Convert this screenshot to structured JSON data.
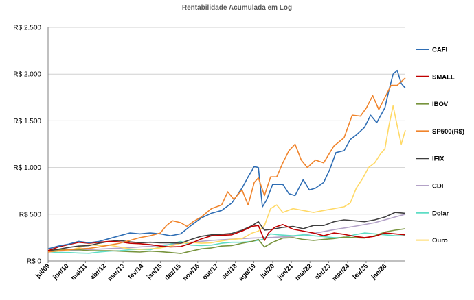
{
  "chart_data": {
    "type": "line",
    "title": "Rentabilidade Acumulada em Log",
    "xlabel": "",
    "ylabel": "",
    "ylim": [
      0,
      2500
    ],
    "yticks": [
      0,
      500,
      1000,
      1500,
      2000,
      2500
    ],
    "ytick_labels": [
      "R$ 0",
      "R$ 500",
      "R$ 1.000",
      "R$ 1.500",
      "R$ 2.000",
      "R$ 2.500"
    ],
    "x_range": [
      2009.5,
      2027.0
    ],
    "xticks": [
      2009.5,
      2010.42,
      2011.33,
      2012.25,
      2013.17,
      2014.08,
      2015.0,
      2015.92,
      2016.83,
      2017.75,
      2018.67,
      2019.58,
      2020.5,
      2021.42,
      2022.33,
      2023.25,
      2024.17,
      2025.08,
      2026.0
    ],
    "xtick_labels": [
      "jul/09",
      "jun/10",
      "mai/11",
      "abr/12",
      "mar/13",
      "fev/14",
      "jan/15",
      "dez/15",
      "nov/16",
      "out/17",
      "set/18",
      "ago/19",
      "jul/20",
      "jun/21",
      "mai/22",
      "abr/23",
      "mar/24",
      "fev/25",
      "jan/26"
    ],
    "grid": true,
    "legend_position": "right",
    "series": [
      {
        "name": "CAFI",
        "color": "#2E6DB4",
        "x": [
          2009.5,
          2010.0,
          2010.5,
          2011.0,
          2011.5,
          2012.0,
          2012.5,
          2013.0,
          2013.5,
          2014.0,
          2014.5,
          2015.0,
          2015.5,
          2016.0,
          2016.5,
          2017.0,
          2017.5,
          2018.0,
          2018.5,
          2019.0,
          2019.3,
          2019.6,
          2019.8,
          2020.0,
          2020.2,
          2020.5,
          2021.0,
          2021.3,
          2021.6,
          2022.0,
          2022.3,
          2022.6,
          2023.0,
          2023.3,
          2023.6,
          2024.0,
          2024.3,
          2024.6,
          2025.0,
          2025.3,
          2025.6,
          2026.0,
          2026.2,
          2026.4,
          2026.6,
          2026.8,
          2027.0
        ],
        "values": [
          130,
          160,
          180,
          210,
          195,
          210,
          240,
          270,
          300,
          290,
          300,
          290,
          270,
          290,
          380,
          460,
          510,
          540,
          620,
          780,
          900,
          1010,
          1000,
          580,
          650,
          820,
          820,
          720,
          700,
          870,
          760,
          780,
          840,
          980,
          1160,
          1180,
          1300,
          1350,
          1430,
          1560,
          1480,
          1640,
          1830,
          2000,
          2040,
          1900,
          1850
        ]
      },
      {
        "name": "SMALL",
        "color": "#C00000",
        "x": [
          2009.5,
          2010.0,
          2010.5,
          2011.0,
          2011.5,
          2012.0,
          2012.5,
          2013.0,
          2013.5,
          2014.0,
          2014.5,
          2015.0,
          2015.5,
          2016.0,
          2016.5,
          2017.0,
          2017.5,
          2018.0,
          2018.5,
          2019.0,
          2019.5,
          2019.8,
          2020.1,
          2020.3,
          2020.6,
          2021.0,
          2021.5,
          2022.0,
          2022.5,
          2023.0,
          2023.5,
          2024.0,
          2024.5,
          2025.0,
          2025.5,
          2026.0,
          2026.5,
          2027.0
        ],
        "values": [
          110,
          150,
          175,
          200,
          190,
          200,
          210,
          205,
          190,
          185,
          175,
          160,
          150,
          155,
          190,
          235,
          270,
          275,
          280,
          320,
          370,
          380,
          220,
          300,
          360,
          390,
          340,
          320,
          300,
          270,
          300,
          285,
          265,
          250,
          265,
          300,
          290,
          280
        ]
      },
      {
        "name": "IBOV",
        "color": "#77933C",
        "x": [
          2009.5,
          2010.0,
          2010.5,
          2011.0,
          2011.5,
          2012.0,
          2012.5,
          2013.0,
          2013.5,
          2014.0,
          2014.5,
          2015.0,
          2015.5,
          2016.0,
          2016.5,
          2017.0,
          2017.5,
          2018.0,
          2018.5,
          2019.0,
          2019.5,
          2019.8,
          2020.1,
          2020.5,
          2021.0,
          2021.5,
          2022.0,
          2022.5,
          2023.0,
          2023.5,
          2024.0,
          2024.5,
          2025.0,
          2025.5,
          2026.0,
          2026.5,
          2027.0
        ],
        "values": [
          110,
          120,
          120,
          120,
          110,
          110,
          110,
          105,
          100,
          95,
          105,
          100,
          90,
          80,
          105,
          130,
          140,
          160,
          165,
          190,
          210,
          230,
          150,
          200,
          245,
          250,
          230,
          220,
          230,
          240,
          255,
          250,
          245,
          270,
          310,
          330,
          345
        ]
      },
      {
        "name": "SP500(R$)",
        "color": "#F0842C",
        "x": [
          2009.5,
          2010.0,
          2010.5,
          2011.0,
          2011.5,
          2012.0,
          2012.5,
          2013.0,
          2013.5,
          2014.0,
          2014.5,
          2015.0,
          2015.3,
          2015.6,
          2016.0,
          2016.3,
          2016.6,
          2017.0,
          2017.5,
          2018.0,
          2018.3,
          2018.6,
          2019.0,
          2019.3,
          2019.6,
          2019.8,
          2020.1,
          2020.4,
          2020.7,
          2021.0,
          2021.3,
          2021.6,
          2021.9,
          2022.2,
          2022.6,
          2023.0,
          2023.5,
          2024.0,
          2024.4,
          2024.8,
          2025.1,
          2025.4,
          2025.7,
          2026.0,
          2026.3,
          2026.6,
          2027.0
        ],
        "values": [
          95,
          110,
          120,
          130,
          135,
          150,
          170,
          190,
          220,
          250,
          270,
          300,
          380,
          430,
          410,
          370,
          420,
          470,
          560,
          600,
          740,
          660,
          760,
          600,
          840,
          890,
          700,
          900,
          900,
          1050,
          1180,
          1250,
          1080,
          1000,
          1080,
          1050,
          1230,
          1320,
          1560,
          1550,
          1640,
          1770,
          1620,
          1750,
          1880,
          1880,
          1960
        ]
      },
      {
        "name": "IFIX",
        "color": "#3F3F3F",
        "x": [
          2009.5,
          2010.0,
          2010.5,
          2011.0,
          2011.5,
          2012.0,
          2012.5,
          2013.0,
          2013.5,
          2014.0,
          2014.5,
          2015.0,
          2015.5,
          2016.0,
          2016.5,
          2017.0,
          2017.5,
          2018.0,
          2018.5,
          2019.0,
          2019.5,
          2019.8,
          2020.1,
          2020.5,
          2021.0,
          2021.5,
          2022.0,
          2022.5,
          2023.0,
          2023.5,
          2024.0,
          2024.5,
          2025.0,
          2025.5,
          2026.0,
          2026.5,
          2027.0
        ],
        "values": [
          110,
          125,
          145,
          160,
          165,
          190,
          210,
          220,
          205,
          195,
          200,
          195,
          195,
          190,
          230,
          265,
          280,
          285,
          295,
          330,
          380,
          420,
          330,
          340,
          360,
          370,
          345,
          380,
          380,
          420,
          440,
          430,
          420,
          440,
          470,
          520,
          510
        ]
      },
      {
        "name": "CDI",
        "color": "#B3A2C7",
        "x": [
          2009.5,
          2010.5,
          2011.5,
          2012.5,
          2013.5,
          2014.5,
          2015.5,
          2016.5,
          2017.5,
          2018.5,
          2019.5,
          2020.5,
          2021.5,
          2022.5,
          2023.5,
          2024.5,
          2025.5,
          2026.5,
          2027.0
        ],
        "values": [
          100,
          110,
          122,
          133,
          143,
          158,
          178,
          200,
          220,
          233,
          245,
          252,
          265,
          295,
          335,
          370,
          410,
          470,
          500
        ]
      },
      {
        "name": "Dolar",
        "color": "#5EDDC5",
        "x": [
          2009.5,
          2010.0,
          2010.5,
          2011.0,
          2011.5,
          2012.0,
          2012.5,
          2013.0,
          2013.5,
          2014.0,
          2014.5,
          2015.0,
          2015.5,
          2016.0,
          2016.5,
          2017.0,
          2017.5,
          2018.0,
          2018.5,
          2019.0,
          2019.5,
          2020.0,
          2020.4,
          2020.8,
          2021.5,
          2022.0,
          2022.5,
          2023.0,
          2023.5,
          2024.0,
          2024.5,
          2025.0,
          2025.5,
          2026.0,
          2026.5,
          2027.0
        ],
        "values": [
          100,
          90,
          90,
          85,
          82,
          95,
          105,
          110,
          120,
          125,
          120,
          150,
          180,
          210,
          170,
          165,
          170,
          190,
          200,
          200,
          210,
          230,
          290,
          280,
          270,
          280,
          270,
          260,
          250,
          250,
          280,
          300,
          290,
          280,
          270,
          270
        ]
      },
      {
        "name": "Ouro",
        "color": "#FFD966",
        "x": [
          2009.5,
          2010.0,
          2010.5,
          2011.0,
          2011.5,
          2012.0,
          2012.5,
          2013.0,
          2013.5,
          2014.0,
          2014.5,
          2015.0,
          2015.5,
          2016.0,
          2016.5,
          2017.0,
          2017.5,
          2018.0,
          2018.5,
          2019.0,
          2019.5,
          2019.8,
          2020.1,
          2020.4,
          2020.7,
          2021.0,
          2021.5,
          2022.0,
          2022.5,
          2023.0,
          2023.5,
          2024.0,
          2024.3,
          2024.6,
          2024.9,
          2025.2,
          2025.5,
          2025.8,
          2026.0,
          2026.2,
          2026.4,
          2026.6,
          2026.8,
          2027.0
        ],
        "values": [
          100,
          105,
          115,
          140,
          175,
          165,
          170,
          150,
          130,
          125,
          130,
          140,
          160,
          190,
          200,
          190,
          195,
          215,
          230,
          240,
          300,
          320,
          380,
          560,
          600,
          520,
          560,
          540,
          520,
          540,
          560,
          580,
          620,
          780,
          880,
          1000,
          1050,
          1150,
          1200,
          1450,
          1660,
          1450,
          1250,
          1400
        ]
      }
    ]
  }
}
